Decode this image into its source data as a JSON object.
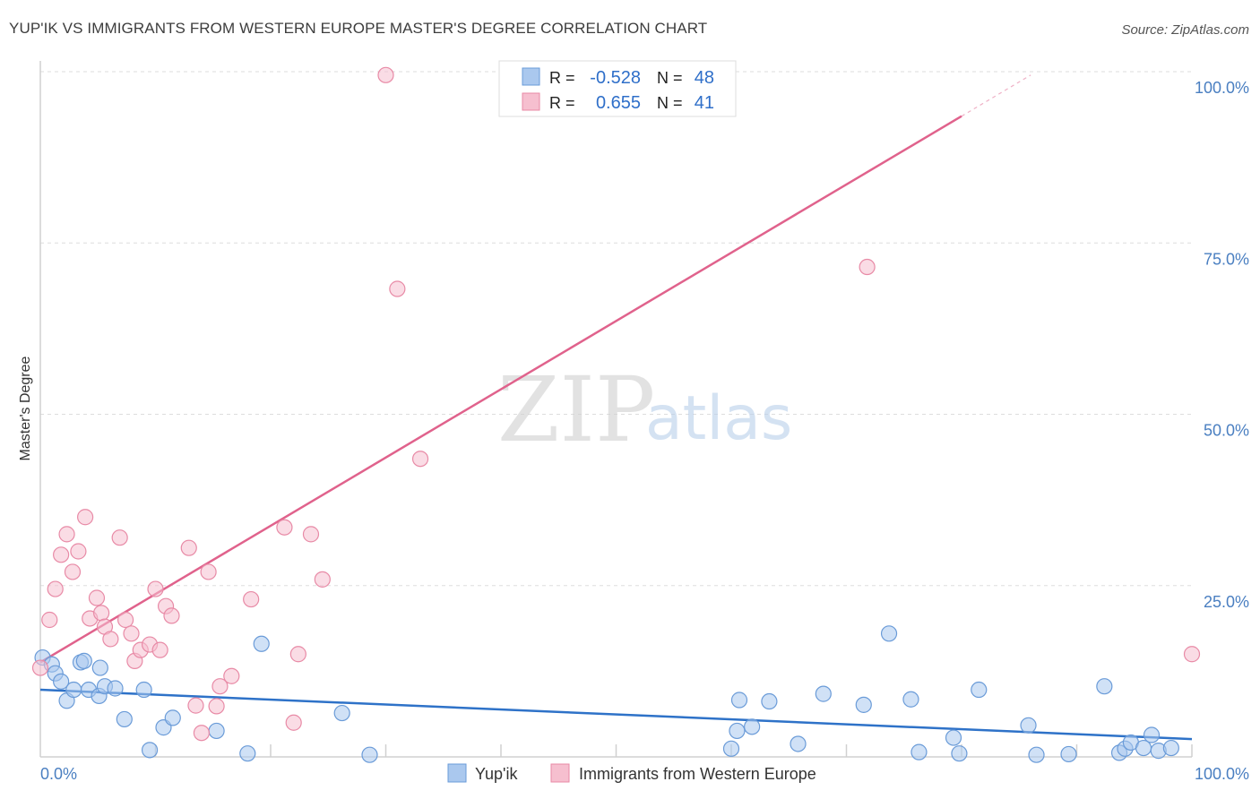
{
  "title": "YUP'IK VS IMMIGRANTS FROM WESTERN EUROPE MASTER'S DEGREE CORRELATION CHART",
  "source": "Source: ZipAtlas.com",
  "watermark": {
    "zip": "ZIP",
    "atlas": "atlas"
  },
  "colors": {
    "blue_fill": "#aac8ee",
    "blue_stroke": "#6a9bd8",
    "blue_line": "#2e72c8",
    "pink_fill": "#f6bfcf",
    "pink_stroke": "#e88aa6",
    "pink_line": "#e0628c",
    "grid": "#dddddd"
  },
  "legend": {
    "r_label": "R =",
    "n_label": "N =",
    "rows": [
      {
        "series": "blue",
        "r": "-0.528",
        "n": "48"
      },
      {
        "series": "pink",
        "r": "0.655",
        "n": "41"
      }
    ]
  },
  "chart_data": {
    "type": "scatter",
    "xlabel": "",
    "ylabel": "Master's Degree",
    "xlim": [
      0,
      100
    ],
    "ylim": [
      0,
      100
    ],
    "x_tick_labels": [
      "0.0%",
      "100.0%"
    ],
    "y_ticks": [
      25,
      50,
      75,
      100
    ],
    "y_tick_labels": [
      "25.0%",
      "50.0%",
      "75.0%",
      "100.0%"
    ],
    "grid": true,
    "legend_position": "top-center",
    "series": [
      {
        "name": "Yup'ik",
        "color": "blue",
        "trend": {
          "x": [
            0,
            100
          ],
          "y": [
            9.8,
            2.6
          ]
        },
        "points": [
          [
            0.2,
            14.5
          ],
          [
            1.0,
            13.5
          ],
          [
            1.3,
            12.2
          ],
          [
            1.8,
            11.0
          ],
          [
            2.3,
            8.2
          ],
          [
            2.9,
            9.8
          ],
          [
            3.5,
            13.8
          ],
          [
            3.8,
            14.0
          ],
          [
            4.2,
            9.8
          ],
          [
            5.1,
            8.9
          ],
          [
            5.2,
            13.0
          ],
          [
            5.6,
            10.3
          ],
          [
            6.5,
            10.0
          ],
          [
            7.3,
            5.5
          ],
          [
            9.0,
            9.8
          ],
          [
            9.5,
            1.0
          ],
          [
            10.7,
            4.3
          ],
          [
            11.5,
            5.7
          ],
          [
            15.3,
            3.8
          ],
          [
            18.0,
            0.5
          ],
          [
            19.2,
            16.5
          ],
          [
            26.2,
            6.4
          ],
          [
            28.6,
            0.3
          ],
          [
            60.0,
            1.2
          ],
          [
            60.5,
            3.8
          ],
          [
            60.7,
            8.3
          ],
          [
            61.8,
            4.4
          ],
          [
            63.3,
            8.1
          ],
          [
            65.8,
            1.9
          ],
          [
            68.0,
            9.2
          ],
          [
            71.5,
            7.6
          ],
          [
            73.7,
            18.0
          ],
          [
            75.6,
            8.4
          ],
          [
            76.3,
            0.7
          ],
          [
            79.3,
            2.8
          ],
          [
            79.8,
            0.5
          ],
          [
            81.5,
            9.8
          ],
          [
            85.8,
            4.6
          ],
          [
            86.5,
            0.3
          ],
          [
            89.3,
            0.4
          ],
          [
            92.4,
            10.3
          ],
          [
            93.7,
            0.6
          ],
          [
            94.2,
            1.2
          ],
          [
            94.7,
            2.1
          ],
          [
            95.8,
            1.3
          ],
          [
            96.5,
            3.2
          ],
          [
            97.1,
            0.9
          ],
          [
            98.2,
            1.3
          ]
        ]
      },
      {
        "name": "Immigrants from Western Europe",
        "color": "pink",
        "trend": {
          "x": [
            0,
            80
          ],
          "y": [
            13.8,
            93.5
          ]
        },
        "trend_dashed": {
          "x": [
            80,
            86
          ],
          "y": [
            93.5,
            99.5
          ]
        },
        "points": [
          [
            0.0,
            13.0
          ],
          [
            0.8,
            20.0
          ],
          [
            1.3,
            24.5
          ],
          [
            1.8,
            29.5
          ],
          [
            2.3,
            32.5
          ],
          [
            2.8,
            27.0
          ],
          [
            3.3,
            30.0
          ],
          [
            3.9,
            35.0
          ],
          [
            4.3,
            20.2
          ],
          [
            4.9,
            23.2
          ],
          [
            5.3,
            21.0
          ],
          [
            5.6,
            19.0
          ],
          [
            6.1,
            17.2
          ],
          [
            6.9,
            32.0
          ],
          [
            7.4,
            20.0
          ],
          [
            7.9,
            18.0
          ],
          [
            8.2,
            14.0
          ],
          [
            8.7,
            15.6
          ],
          [
            9.5,
            16.4
          ],
          [
            10.0,
            24.5
          ],
          [
            10.4,
            15.6
          ],
          [
            10.9,
            22.0
          ],
          [
            11.4,
            20.6
          ],
          [
            12.9,
            30.5
          ],
          [
            13.5,
            7.5
          ],
          [
            14.0,
            3.5
          ],
          [
            14.6,
            27.0
          ],
          [
            15.3,
            7.4
          ],
          [
            15.6,
            10.3
          ],
          [
            16.6,
            11.8
          ],
          [
            18.3,
            23.0
          ],
          [
            21.2,
            33.5
          ],
          [
            22.0,
            5.0
          ],
          [
            22.4,
            15.0
          ],
          [
            23.5,
            32.5
          ],
          [
            24.5,
            25.9
          ],
          [
            30.0,
            99.5
          ],
          [
            31.0,
            68.3
          ],
          [
            33.0,
            43.5
          ],
          [
            71.8,
            71.5
          ],
          [
            100.0,
            15.0
          ]
        ]
      }
    ]
  }
}
